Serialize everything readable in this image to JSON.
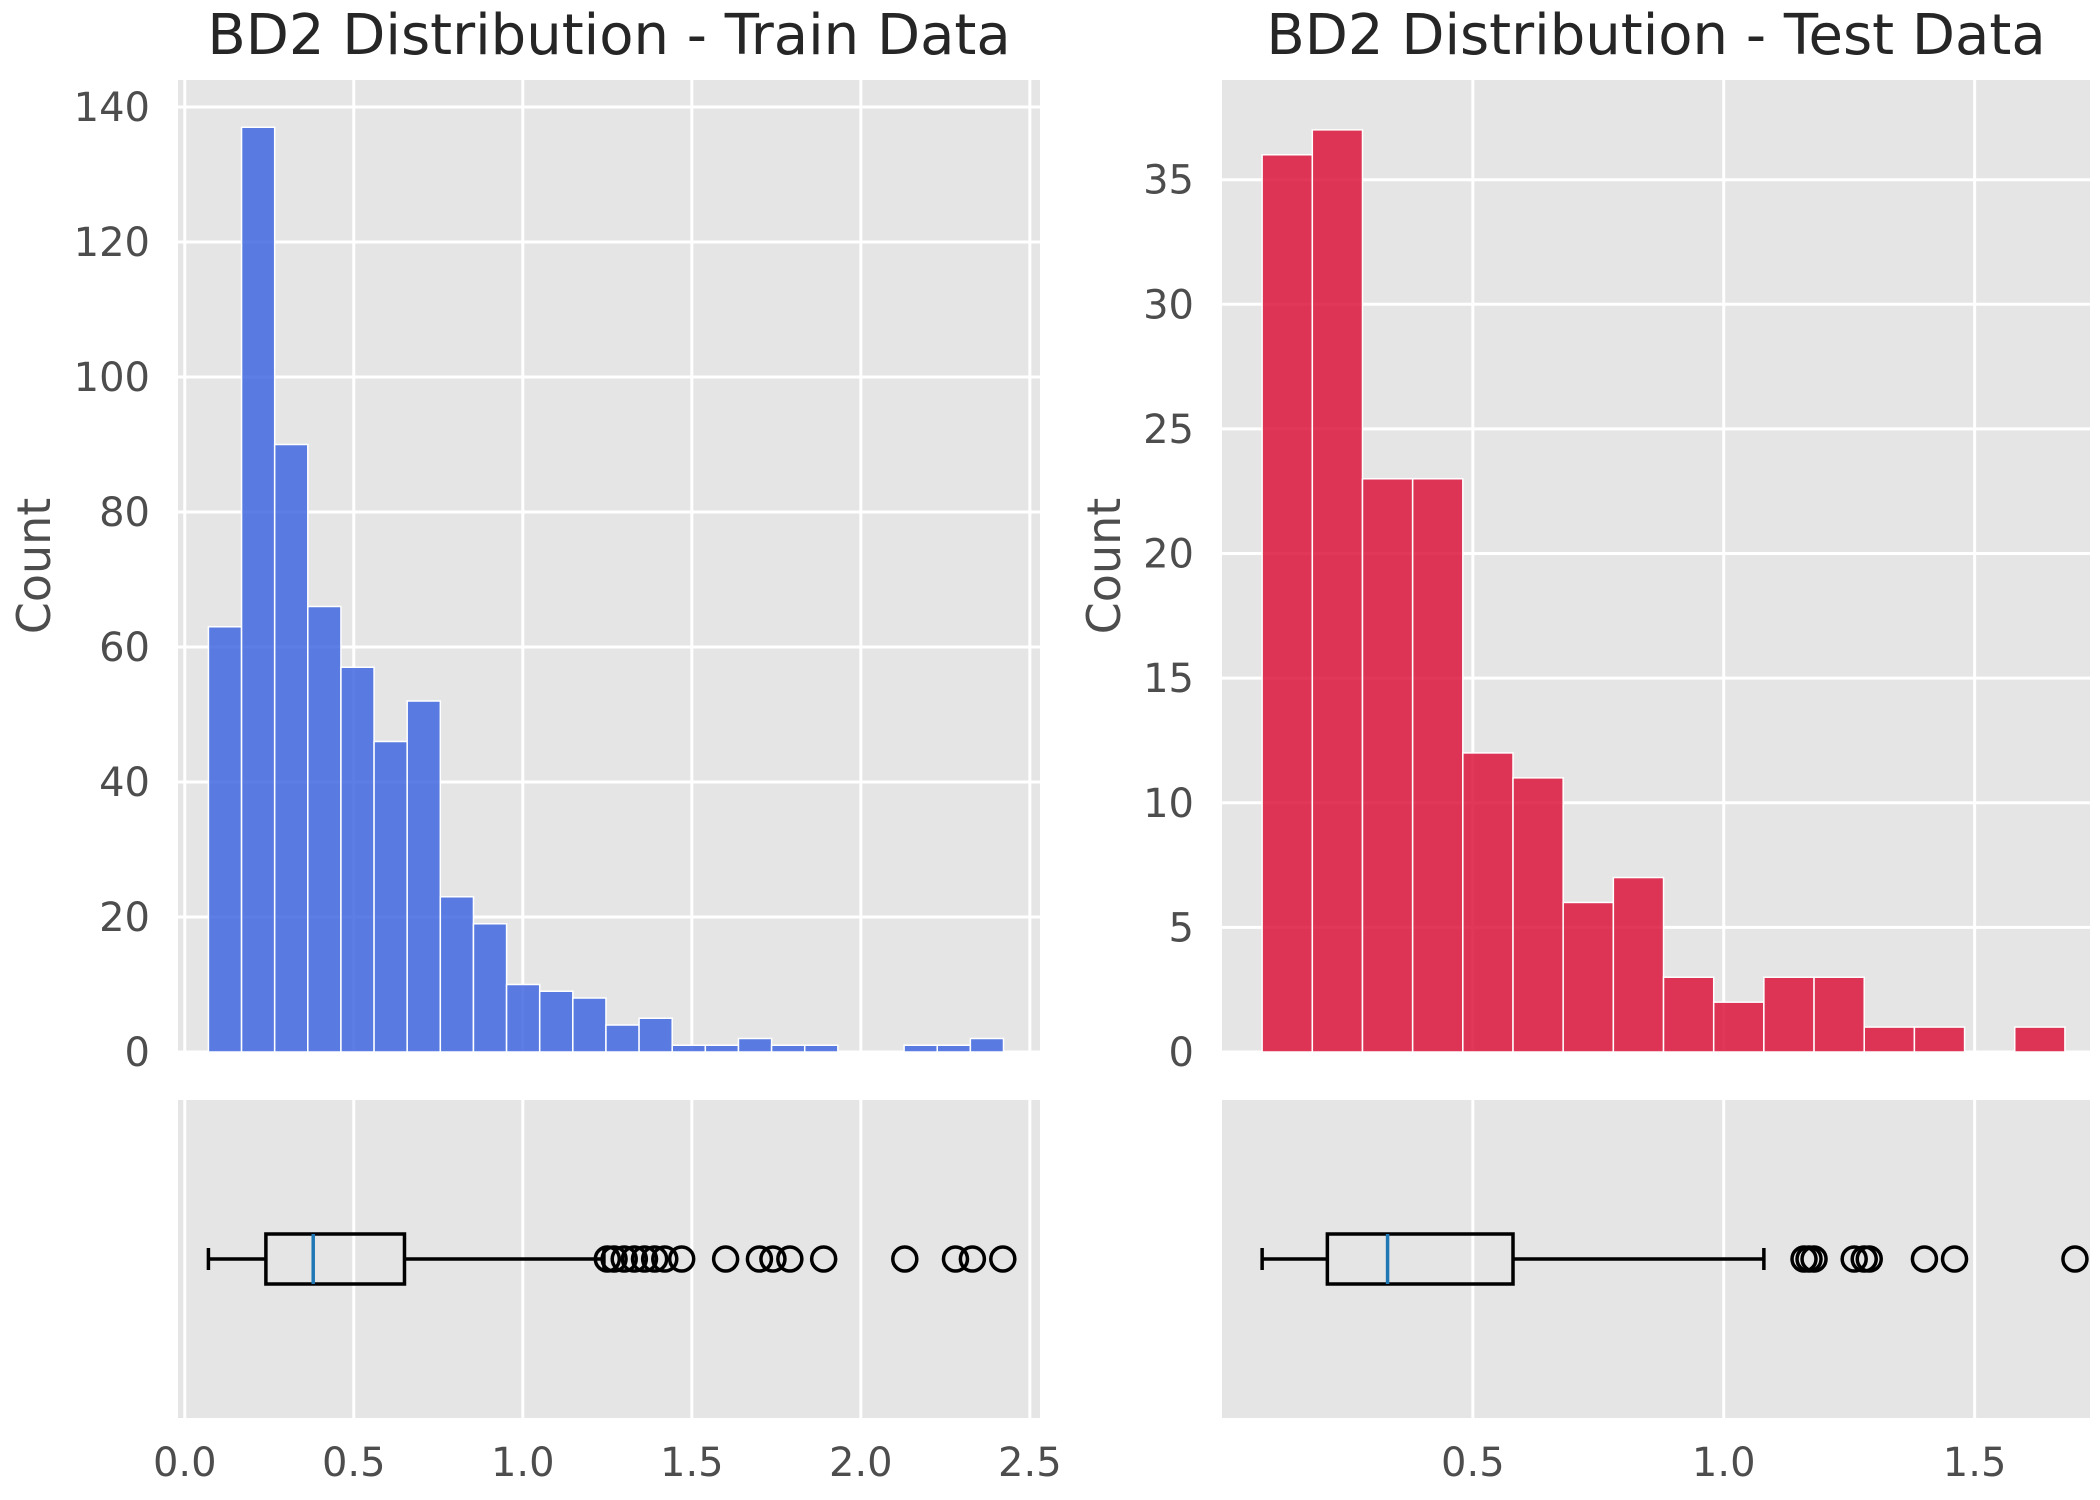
{
  "chart_data": [
    {
      "type": "bar",
      "subtype": "histogram",
      "title": "BD2 Distribution - Train Data",
      "xlabel": "",
      "ylabel": "Count",
      "color": "#4169E1",
      "xlim": [
        -0.02,
        2.53
      ],
      "ylim": [
        0,
        144
      ],
      "yticks": [
        0,
        20,
        40,
        60,
        80,
        100,
        120,
        140
      ],
      "xticks": [
        0.0,
        0.5,
        1.0,
        1.5,
        2.0,
        2.5
      ],
      "bin_edges": [
        0.07,
        0.168,
        0.266,
        0.364,
        0.462,
        0.56,
        0.658,
        0.756,
        0.854,
        0.952,
        1.05,
        1.148,
        1.246,
        1.344,
        1.442,
        1.54,
        1.638,
        1.736,
        1.834,
        1.932,
        2.03,
        2.128,
        2.226,
        2.324,
        2.422
      ],
      "counts": [
        63,
        137,
        90,
        66,
        57,
        46,
        52,
        23,
        19,
        10,
        9,
        8,
        4,
        5,
        1,
        1,
        2,
        1,
        1,
        0,
        0,
        1,
        1,
        2
      ],
      "grid": true,
      "boxplot": {
        "whisker_low": 0.07,
        "q1": 0.24,
        "median": 0.38,
        "q3": 0.65,
        "whisker_high": 1.24,
        "outliers": [
          1.25,
          1.27,
          1.3,
          1.33,
          1.36,
          1.39,
          1.42,
          1.47,
          1.6,
          1.7,
          1.74,
          1.79,
          1.89,
          2.13,
          2.28,
          2.33,
          2.42
        ]
      }
    },
    {
      "type": "bar",
      "subtype": "histogram",
      "title": "BD2 Distribution - Test Data",
      "xlabel": "",
      "ylabel": "Count",
      "color": "#DC143C",
      "xlim": [
        0.0,
        1.73
      ],
      "ylim": [
        0,
        39
      ],
      "yticks": [
        0,
        5,
        10,
        15,
        20,
        25,
        30,
        35
      ],
      "xticks": [
        0.5,
        1.0,
        1.5
      ],
      "bin_edges": [
        0.08,
        0.18,
        0.28,
        0.38,
        0.48,
        0.58,
        0.68,
        0.78,
        0.88,
        0.98,
        1.08,
        1.18,
        1.28,
        1.38,
        1.48,
        1.58,
        1.68
      ],
      "counts": [
        36,
        37,
        23,
        23,
        12,
        11,
        6,
        7,
        3,
        2,
        3,
        3,
        1,
        1,
        0,
        1
      ],
      "grid": true,
      "boxplot": {
        "whisker_low": 0.08,
        "q1": 0.21,
        "median": 0.33,
        "q3": 0.58,
        "whisker_high": 1.08,
        "outliers": [
          1.16,
          1.17,
          1.18,
          1.26,
          1.28,
          1.29,
          1.4,
          1.46,
          1.7
        ]
      }
    }
  ]
}
